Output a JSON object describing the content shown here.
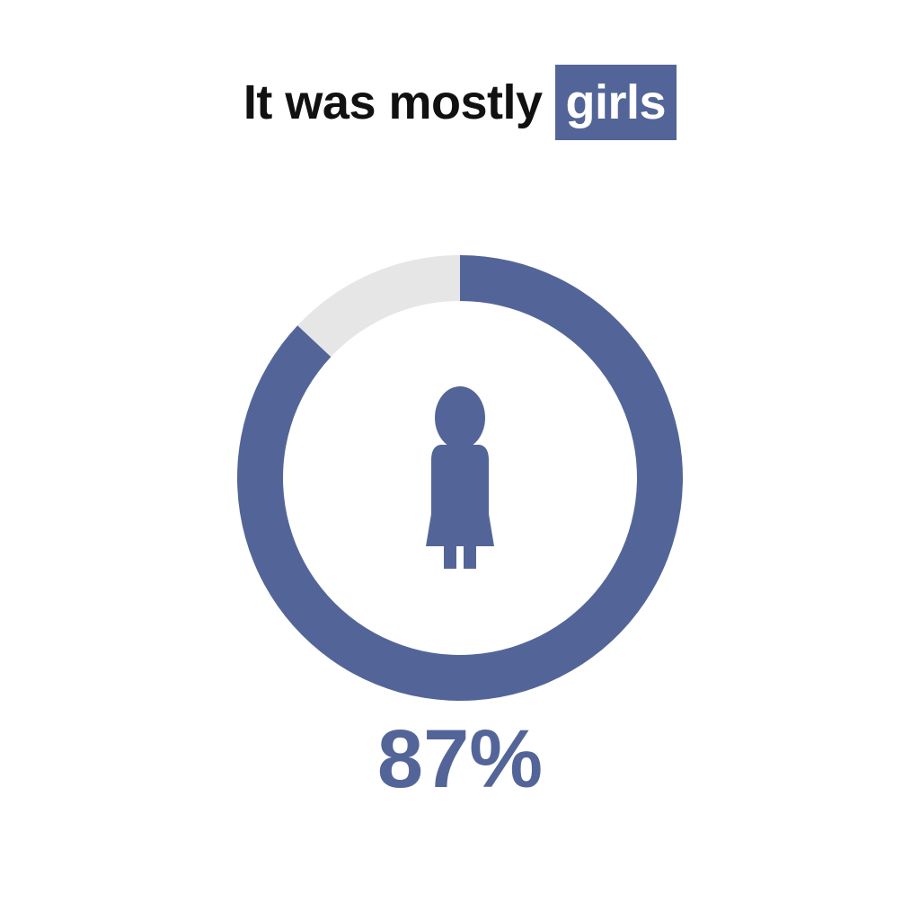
{
  "title": {
    "prefix": "It was mostly",
    "highlight": "girls"
  },
  "chart_data": {
    "type": "pie",
    "subtype": "donut",
    "slices": [
      {
        "label": "girls",
        "value": 87
      },
      {
        "label": "other",
        "value": 13
      }
    ],
    "center_icon": "girl-icon",
    "value_label": "87%"
  },
  "colors": {
    "primary": "#536598",
    "remainder": "#e6e6e6",
    "title_text": "#111111",
    "background": "#ffffff"
  }
}
